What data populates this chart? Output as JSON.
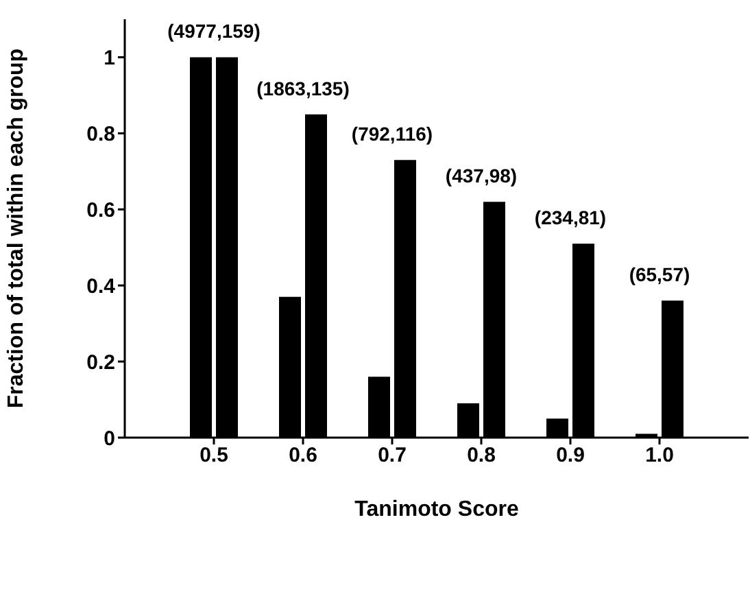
{
  "chart_data": {
    "type": "bar",
    "xlabel": "Tanimoto Score",
    "ylabel": "Fraction of total within each group",
    "x": [
      0.5,
      0.6,
      0.7,
      0.8,
      0.9,
      1.0
    ],
    "series": [
      {
        "color": "#000000",
        "values": [
          1.0,
          0.37,
          0.16,
          0.09,
          0.05,
          0.01
        ]
      },
      {
        "color": "#000000",
        "values": [
          1.0,
          0.85,
          0.73,
          0.62,
          0.51,
          0.36
        ]
      }
    ],
    "xlim": [
      0.4,
      1.1
    ],
    "xticks": [
      0.5,
      0.6,
      0.7,
      0.8,
      0.9,
      {
        "value": 1.0,
        "label": "1.0"
      }
    ],
    "ylim": [
      0,
      1.1
    ],
    "yticks": [
      0,
      0.2,
      0.4,
      0.6,
      0.8,
      1
    ],
    "annotations": [
      {
        "text": "(4977,159)",
        "x": 0.5,
        "y": 1.0
      },
      {
        "text": "(1863,135)",
        "x": 0.6,
        "y": 0.85
      },
      {
        "text": "(792,116)",
        "x": 0.7,
        "y": 0.73
      },
      {
        "text": "(437,98)",
        "x": 0.8,
        "y": 0.62
      },
      {
        "text": "(234,81)",
        "x": 0.9,
        "y": 0.51
      },
      {
        "text": "(65,57)",
        "x": 1.0,
        "y": 0.36
      }
    ],
    "grid": false,
    "legend": false
  }
}
